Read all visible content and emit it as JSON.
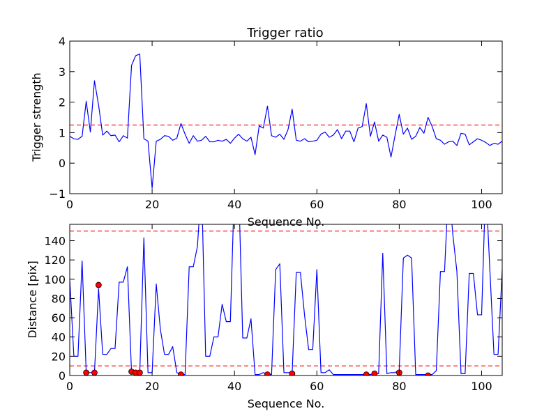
{
  "chart_data": [
    {
      "type": "line",
      "title": "Trigger ratio",
      "xlabel": "Sequence No.",
      "ylabel": "Trigger strength",
      "xlim": [
        0,
        105
      ],
      "ylim": [
        -1,
        4
      ],
      "xticks": [
        "0",
        "20",
        "40",
        "60",
        "80",
        "100"
      ],
      "yticks": [
        "−1",
        "0",
        "1",
        "2",
        "3",
        "4"
      ],
      "grid": false,
      "threshold": 1.25,
      "series": [
        {
          "color": "#0000ff",
          "x": [
            0,
            1,
            2,
            3,
            4,
            5,
            6,
            7,
            8,
            9,
            10,
            11,
            12,
            13,
            14,
            15,
            16,
            17,
            18,
            19,
            20,
            21,
            22,
            23,
            24,
            25,
            26,
            27,
            28,
            29,
            30,
            31,
            32,
            33,
            34,
            35,
            36,
            37,
            38,
            39,
            40,
            41,
            42,
            43,
            44,
            45,
            46,
            47,
            48,
            49,
            50,
            51,
            52,
            53,
            54,
            55,
            56,
            57,
            58,
            59,
            60,
            61,
            62,
            63,
            64,
            65,
            66,
            67,
            68,
            69,
            70,
            71,
            72,
            73,
            74,
            75,
            76,
            77,
            78,
            79,
            80,
            81,
            82,
            83,
            84,
            85,
            86,
            87,
            88,
            89,
            90,
            91,
            92,
            93,
            94,
            95,
            96,
            97,
            98,
            99,
            100,
            101,
            102,
            103,
            104,
            105
          ],
          "y": [
            0.88,
            0.8,
            0.78,
            0.88,
            2.03,
            1.02,
            2.7,
            1.9,
            0.92,
            1.05,
            0.9,
            0.92,
            0.7,
            0.9,
            0.82,
            3.2,
            3.52,
            3.58,
            0.8,
            0.72,
            -0.82,
            0.72,
            0.78,
            0.9,
            0.88,
            0.75,
            0.82,
            1.3,
            0.95,
            0.65,
            0.9,
            0.72,
            0.75,
            0.88,
            0.7,
            0.7,
            0.75,
            0.72,
            0.78,
            0.65,
            0.82,
            0.95,
            0.8,
            0.72,
            0.85,
            0.28,
            1.22,
            1.15,
            1.87,
            0.9,
            0.85,
            0.95,
            0.78,
            1.1,
            1.77,
            0.75,
            0.72,
            0.8,
            0.7,
            0.72,
            0.75,
            0.95,
            1.02,
            0.85,
            0.92,
            1.1,
            0.8,
            1.05,
            1.05,
            0.7,
            1.15,
            1.2,
            1.95,
            0.88,
            1.35,
            0.72,
            0.92,
            0.85,
            0.2,
            0.92,
            1.6,
            0.95,
            1.15,
            0.78,
            0.88,
            1.17,
            0.98,
            1.5,
            1.2,
            0.8,
            0.75,
            0.62,
            0.7,
            0.72,
            0.58,
            0.98,
            0.95,
            0.6,
            0.7,
            0.8,
            0.75,
            0.68,
            0.58,
            0.65,
            0.62,
            0.72
          ]
        }
      ]
    },
    {
      "type": "line",
      "title": "",
      "xlabel": "Sequence No.",
      "ylabel": "Distance [pix]",
      "xlim": [
        0,
        105
      ],
      "ylim": [
        0,
        157
      ],
      "xticks": [
        "0",
        "20",
        "40",
        "60",
        "80",
        "100"
      ],
      "yticks": [
        "0",
        "20",
        "40",
        "60",
        "80",
        "100",
        "120",
        "140"
      ],
      "grid": false,
      "thresholds": [
        10,
        150
      ],
      "series": [
        {
          "color": "#0000ff",
          "x": [
            0,
            1,
            2,
            3,
            4,
            5,
            6,
            7,
            8,
            9,
            10,
            11,
            12,
            13,
            14,
            15,
            16,
            17,
            18,
            19,
            20,
            21,
            22,
            23,
            24,
            25,
            26,
            27,
            28,
            29,
            30,
            31,
            32,
            33,
            34,
            35,
            36,
            37,
            38,
            39,
            40,
            41,
            42,
            43,
            44,
            45,
            46,
            47,
            48,
            49,
            50,
            51,
            52,
            53,
            54,
            55,
            56,
            57,
            58,
            59,
            60,
            61,
            62,
            63,
            64,
            65,
            66,
            67,
            68,
            69,
            70,
            71,
            72,
            73,
            74,
            75,
            76,
            77,
            78,
            79,
            80,
            81,
            82,
            83,
            84,
            85,
            86,
            87,
            88,
            89,
            90,
            91,
            92,
            93,
            94,
            95,
            96,
            97,
            98,
            99,
            100,
            101,
            102,
            103,
            104,
            105
          ],
          "y": [
            100,
            20,
            20,
            119,
            3,
            3,
            3,
            90,
            22,
            22,
            28,
            28,
            97,
            97,
            113,
            3,
            3,
            3,
            143,
            3,
            3,
            95,
            48,
            22,
            22,
            30,
            3,
            1,
            1,
            113,
            113,
            134,
            200,
            20,
            20,
            40,
            40,
            74,
            56,
            56,
            200,
            200,
            39,
            39,
            59,
            1,
            1,
            3,
            1,
            1,
            110,
            116,
            3,
            3,
            3,
            107,
            107,
            63,
            27,
            27,
            110,
            3,
            3,
            6,
            1,
            1,
            1,
            1,
            1,
            1,
            1,
            1,
            1,
            1,
            2,
            2,
            127,
            2,
            3,
            3,
            6,
            122,
            125,
            122,
            1,
            1,
            1,
            1,
            1,
            5,
            108,
            108,
            200,
            147,
            108,
            2,
            2,
            106,
            106,
            63,
            63,
            200,
            110,
            22,
            22,
            110
          ]
        }
      ],
      "markers": {
        "color": "#ff0000",
        "x": [
          4,
          6,
          7,
          15,
          16,
          17,
          27,
          48,
          54,
          72,
          74,
          80,
          87
        ],
        "y": [
          3,
          3,
          94,
          4,
          3,
          3,
          1,
          1,
          2,
          1,
          2,
          3,
          0
        ]
      }
    }
  ]
}
